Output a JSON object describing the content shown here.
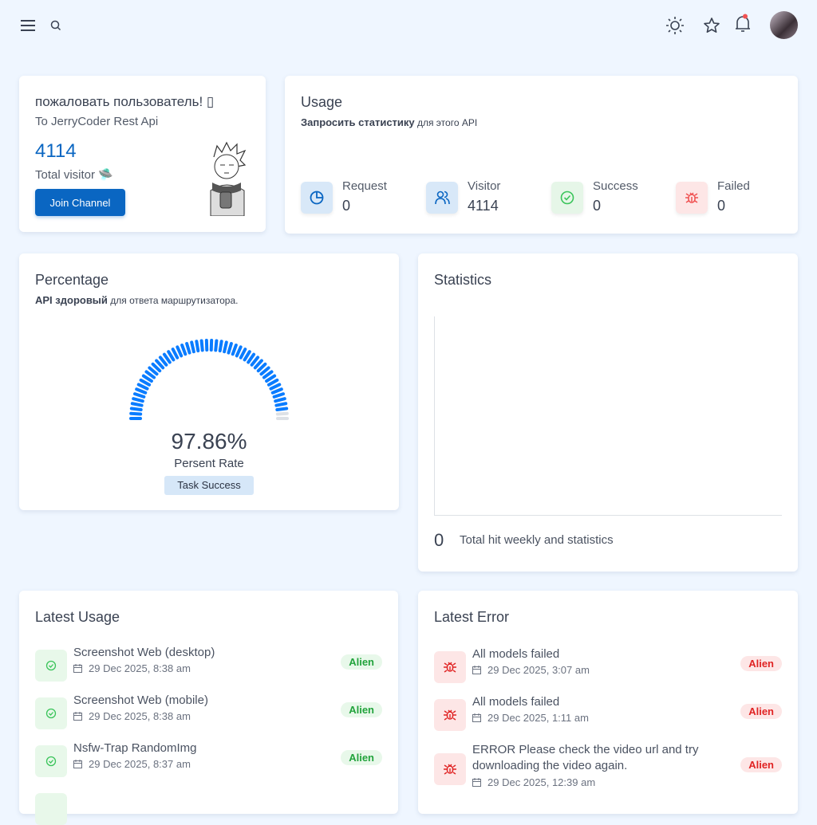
{
  "colors": {
    "accent": "#0a66c2",
    "gauge": "#0a7cff",
    "success": "#22a33c",
    "danger": "#e02424"
  },
  "topbar": {
    "icons": [
      "menu-icon",
      "search-icon",
      "sun-icon",
      "star-icon",
      "bell-icon",
      "avatar"
    ]
  },
  "welcome": {
    "title": "пожаловать пользователь! ▯",
    "subtitle": "To JerryCoder Rest Api",
    "count": "4114",
    "count_label": "Total visitor 🛸",
    "button": "Join Channel"
  },
  "usage": {
    "title": "Usage",
    "subtitle_bold": "Запросить статистику",
    "subtitle_rest": " для этого API",
    "stats": [
      {
        "label": "Request",
        "value": "0",
        "icon": "pie-chart-icon"
      },
      {
        "label": "Visitor",
        "value": "4114",
        "icon": "users-icon"
      },
      {
        "label": "Success",
        "value": "0",
        "icon": "check-circle-icon"
      },
      {
        "label": "Failed",
        "value": "0",
        "icon": "bug-icon"
      }
    ]
  },
  "percentage": {
    "title": "Percentage",
    "subtitle_bold": "API здоровый",
    "subtitle_rest": " для ответа маршрутизатора.",
    "value_fraction": 0.9786,
    "value_text": "97.86%",
    "rate_label": "Persent Rate",
    "badge": "Task Success"
  },
  "statistics": {
    "title": "Statistics",
    "total": "0",
    "total_label": "Total hit weekly and statistics"
  },
  "latest_usage": {
    "title": "Latest Usage",
    "items": [
      {
        "title": "Screenshot Web (desktop)",
        "date": "29 Dec 2025, 8:38 am",
        "badge": "Alien"
      },
      {
        "title": "Screenshot Web (mobile)",
        "date": "29 Dec 2025, 8:38 am",
        "badge": "Alien"
      },
      {
        "title": "Nsfw-Trap RandomImg",
        "date": "29 Dec 2025, 8:37 am",
        "badge": "Alien"
      }
    ]
  },
  "latest_error": {
    "title": "Latest Error",
    "items": [
      {
        "title": "All models failed",
        "date": "29 Dec 2025, 3:07 am",
        "badge": "Alien"
      },
      {
        "title": "All models failed",
        "date": "29 Dec 2025, 1:11 am",
        "badge": "Alien"
      },
      {
        "title": "ERROR Please check the video url and try downloading the video again.",
        "date": "29 Dec 2025, 12:39 am",
        "badge": "Alien"
      }
    ]
  }
}
